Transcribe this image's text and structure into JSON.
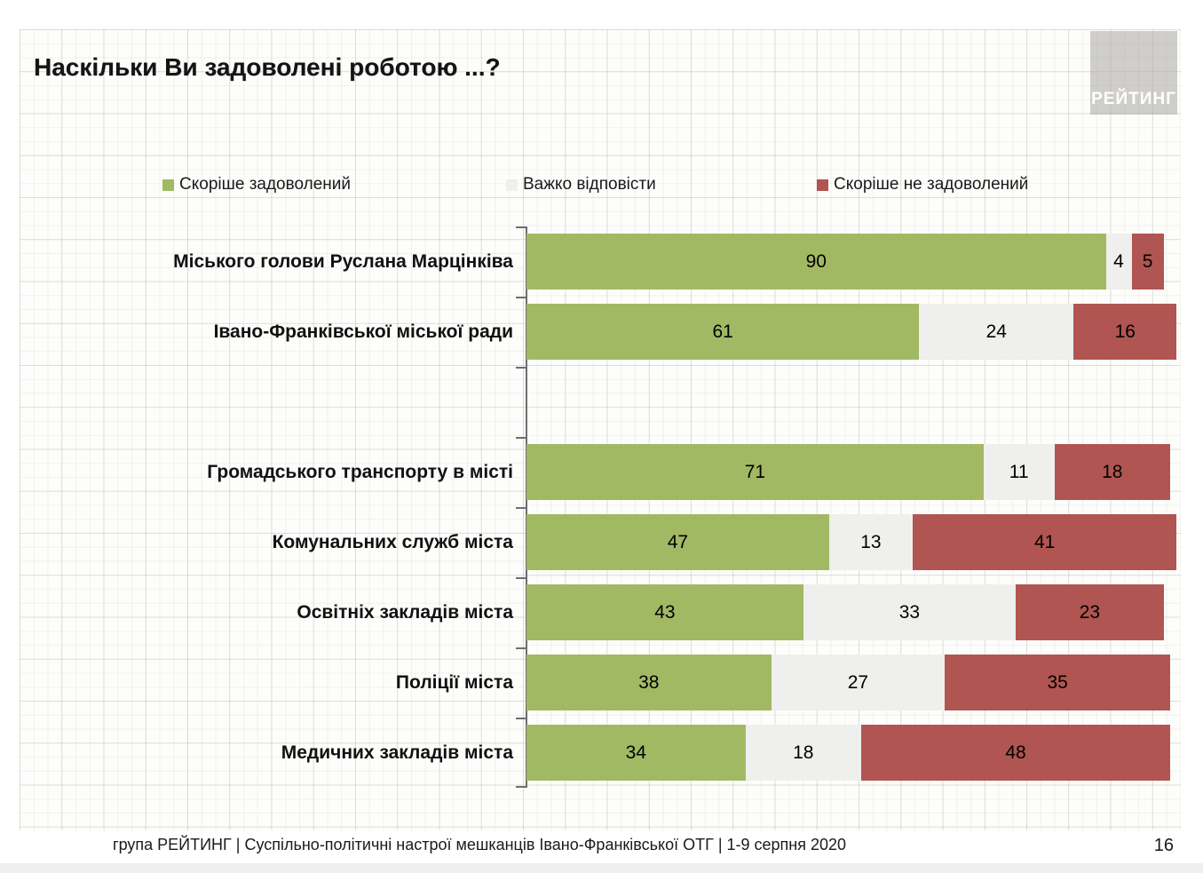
{
  "title": "Наскільки Ви задоволені роботою ...?",
  "logo": {
    "text": "РЕЙТИНГ"
  },
  "legend": [
    {
      "label": "Скоріше задоволений",
      "color": "#a2b964"
    },
    {
      "label": "Важко відповісти",
      "color": "#efefed"
    },
    {
      "label": "Скоріше не задоволений",
      "color": "#b05551"
    }
  ],
  "chart_data": {
    "type": "bar",
    "orientation": "horizontal",
    "stacked": true,
    "unit": "percent",
    "xlim": [
      0,
      100
    ],
    "title": "Наскільки Ви задоволені роботою ...?",
    "series_names": [
      "Скоріше задоволений",
      "Важко відповісти",
      "Скоріше не задоволений"
    ],
    "colors": [
      "#a2b964",
      "#efefed",
      "#b05551"
    ],
    "categories": [
      "Міського голови Руслана Марцінківа",
      "Івано-Франківської міської ради",
      "Громадського транспорту в місті",
      "Комунальних служб міста",
      "Освітніх закладів міста",
      "Поліції міста",
      "Медичних закладів міста"
    ],
    "rows": [
      {
        "label": "Міського голови Руслана Марцінківа",
        "values": [
          90,
          4,
          5
        ]
      },
      {
        "label": "Івано-Франківської міської ради",
        "values": [
          61,
          24,
          16
        ]
      },
      {
        "label": "",
        "values": null,
        "empty": true
      },
      {
        "label": "Громадського транспорту в місті",
        "values": [
          71,
          11,
          18
        ]
      },
      {
        "label": "Комунальних служб міста",
        "values": [
          47,
          13,
          41
        ]
      },
      {
        "label": "Освітніх закладів міста",
        "values": [
          43,
          33,
          23
        ]
      },
      {
        "label": "Поліції міста",
        "values": [
          38,
          27,
          35
        ]
      },
      {
        "label": "Медичних закладів міста",
        "values": [
          34,
          18,
          48
        ]
      }
    ]
  },
  "footer": {
    "left": "група РЕЙТИНГ  | Суспільно-політичні настрої мешканців Івано-Франківської ОТГ | 1-9 серпня 2020",
    "page": "16"
  }
}
